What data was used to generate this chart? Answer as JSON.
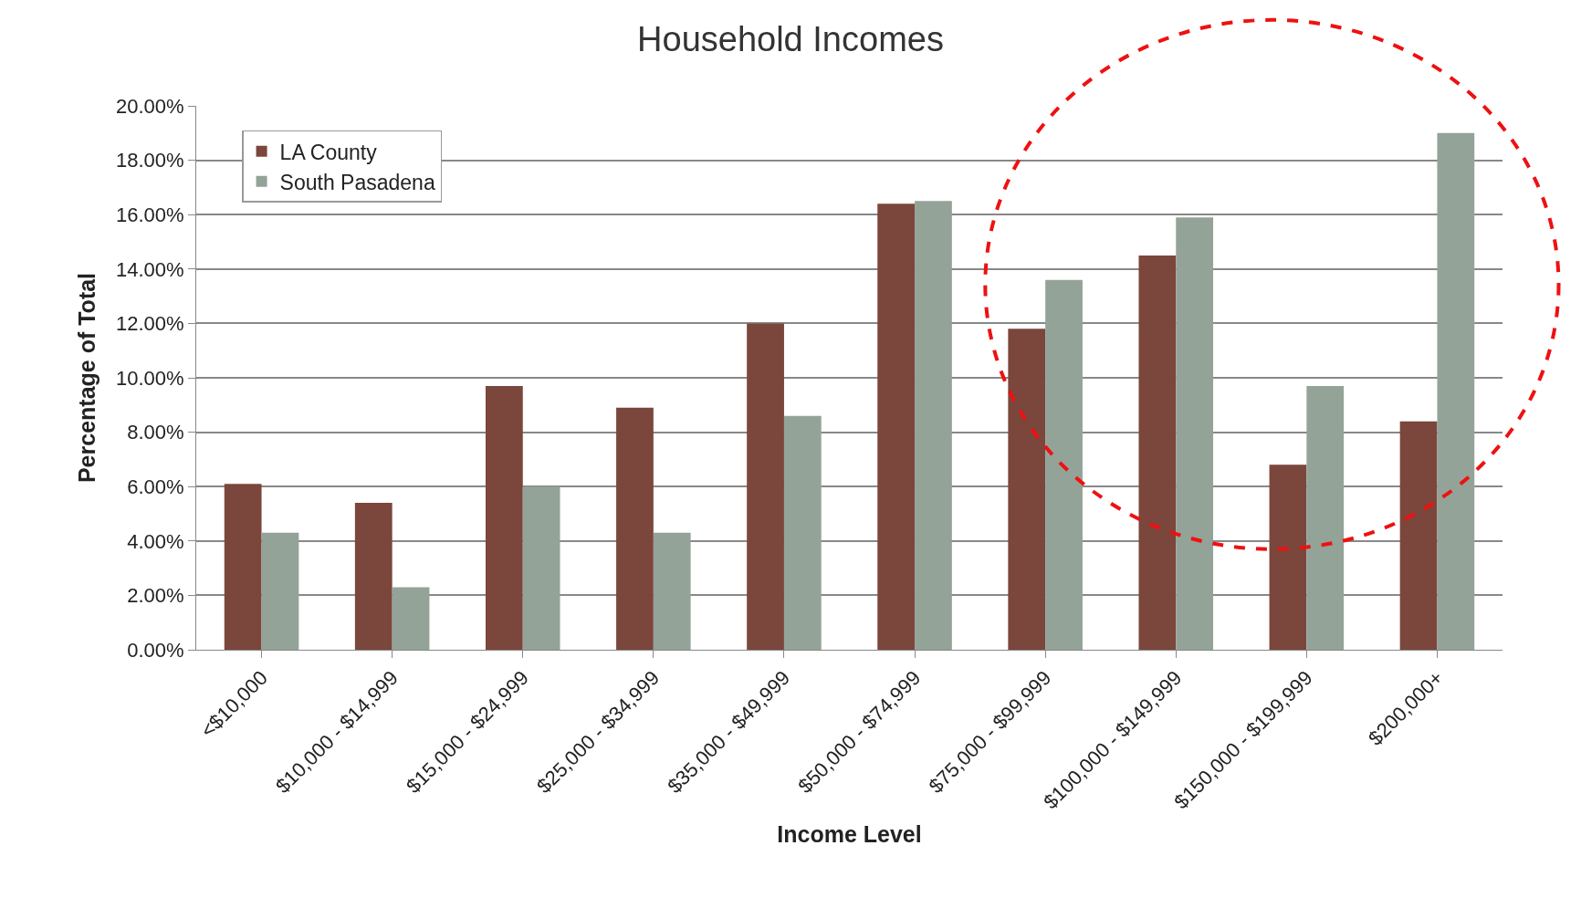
{
  "chart_data": {
    "type": "bar",
    "title": "Household Incomes",
    "xlabel": "Income Level",
    "ylabel": "Percentage of Total",
    "categories": [
      "<$10,000",
      "$10,000 - $14,999",
      "$15,000 - $24,999",
      "$25,000 - $34,999",
      "$35,000 - $49,999",
      "$50,000 - $74,999",
      "$75,000 - $99,999",
      "$100,000 - $149,999",
      "$150,000 - $199,999",
      "$200,000+"
    ],
    "series": [
      {
        "name": "LA County",
        "color": "#7b463c",
        "values": [
          6.1,
          5.4,
          9.7,
          8.9,
          12.0,
          16.4,
          11.8,
          14.5,
          6.8,
          8.4
        ]
      },
      {
        "name": "South Pasadena",
        "color": "#94a398",
        "values": [
          4.3,
          2.3,
          6.0,
          4.3,
          8.6,
          16.5,
          13.6,
          15.9,
          9.7,
          19.0
        ]
      }
    ],
    "ylim": [
      0,
      20
    ],
    "yticks": [
      {
        "value": 0,
        "label": "0.00%"
      },
      {
        "value": 2,
        "label": "2.00%"
      },
      {
        "value": 4,
        "label": "4.00%"
      },
      {
        "value": 6,
        "label": "6.00%"
      },
      {
        "value": 8,
        "label": "8.00%"
      },
      {
        "value": 10,
        "label": "10.00%"
      },
      {
        "value": 12,
        "label": "12.00%"
      },
      {
        "value": 14,
        "label": "14.00%"
      },
      {
        "value": 16,
        "label": "16.00%"
      },
      {
        "value": 18,
        "label": "18.00%"
      },
      {
        "value": 20,
        "label": "20.00%"
      }
    ],
    "grid": "y",
    "legend": "top left"
  }
}
